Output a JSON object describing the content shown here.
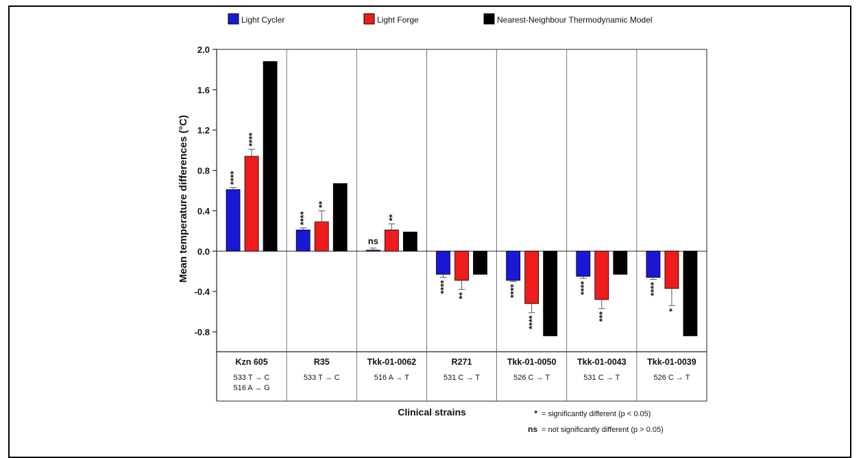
{
  "chart_data": {
    "type": "bar",
    "title": "",
    "xlabel": "Clinical strains",
    "ylabel": "Mean temperature differences (°C)",
    "ylim": [
      -0.8,
      2.0
    ],
    "yticks": [
      "2.0",
      "1.6",
      "1.2",
      "0.8",
      "0.4",
      "0.0",
      "-0.4",
      "-0.8"
    ],
    "ytick_values": [
      2.0,
      1.6,
      1.2,
      0.8,
      0.4,
      0.0,
      -0.4,
      -0.8
    ],
    "legend_position": "top",
    "categories": [
      {
        "name": "Kzn 605",
        "mutations": [
          "533 T → C",
          "516 A → G"
        ]
      },
      {
        "name": "R35",
        "mutations": [
          "533 T → C"
        ]
      },
      {
        "name": "Tkk-01-0062",
        "mutations": [
          "516 A → T"
        ]
      },
      {
        "name": "R271",
        "mutations": [
          "531 C → T"
        ]
      },
      {
        "name": "Tkk-01-0050",
        "mutations": [
          "526 C → T"
        ]
      },
      {
        "name": "Tkk-01-0043",
        "mutations": [
          "531 C → T"
        ]
      },
      {
        "name": "Tkk-01-0039",
        "mutations": [
          "526 C → T"
        ]
      }
    ],
    "series": [
      {
        "name": "Light Cycler",
        "color": "#1a18d6",
        "values": [
          0.61,
          0.21,
          0.01,
          -0.23,
          -0.29,
          -0.25,
          -0.26
        ],
        "errors": [
          0.02,
          0.02,
          0.02,
          0.03,
          0.01,
          0.02,
          0.02
        ],
        "sig": [
          "****",
          "****",
          "ns",
          "****",
          "****",
          "****",
          "****"
        ]
      },
      {
        "name": "Light Forge",
        "color": "#ee1c1c",
        "values": [
          0.94,
          0.29,
          0.21,
          -0.29,
          -0.52,
          -0.48,
          -0.37
        ],
        "errors": [
          0.07,
          0.11,
          0.06,
          0.09,
          0.09,
          0.09,
          0.17
        ],
        "sig": [
          "****",
          "**",
          "**",
          "**",
          "****",
          "***",
          "*"
        ]
      },
      {
        "name": "Nearest-Neighbour Thermodynamic Model",
        "color": "#000000",
        "values": [
          1.88,
          0.67,
          0.19,
          -0.23,
          -0.84,
          -0.23,
          -0.84
        ],
        "errors": [
          0,
          0,
          0,
          0,
          0,
          0,
          0
        ],
        "sig": [
          "",
          "",
          "",
          "",
          "",
          "",
          ""
        ]
      }
    ],
    "footnotes": [
      {
        "symbol": "*",
        "text": "= significantly different (p < 0.05)"
      },
      {
        "symbol": "ns",
        "text": "= not significantly different (p > 0.05)"
      }
    ]
  }
}
